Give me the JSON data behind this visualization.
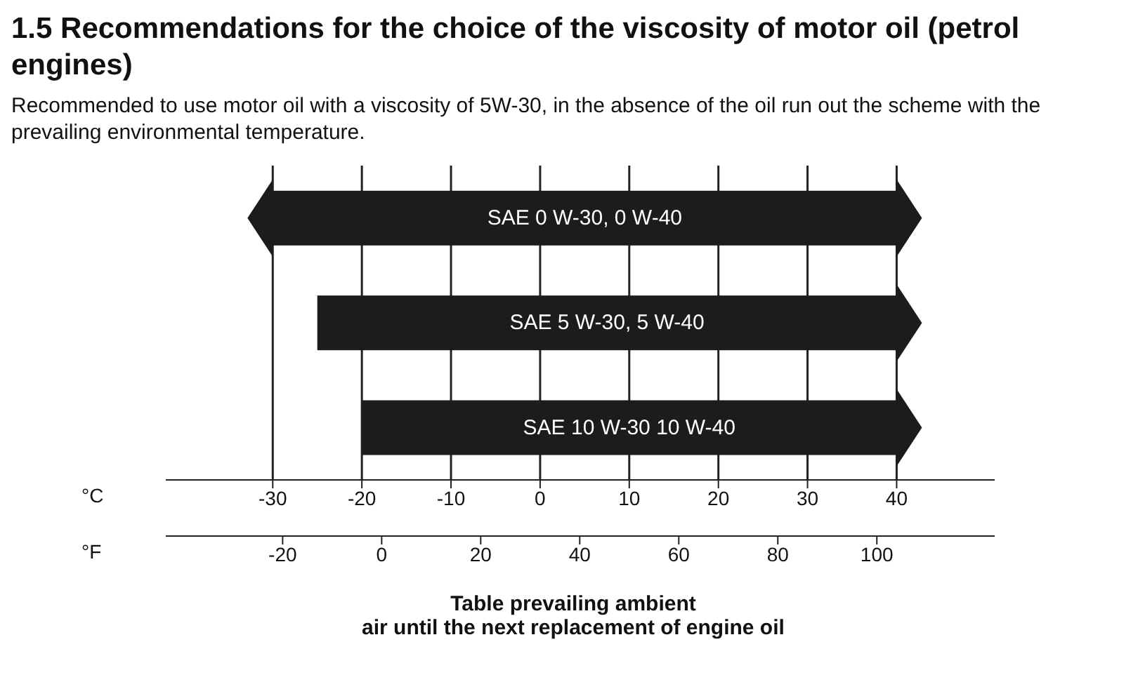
{
  "chart_data": {
    "type": "bar",
    "orientation": "horizontal",
    "title": "1.5  Recommendations for the choice of the viscosity of motor oil (petrol engines)",
    "subtitle": "Recommended to use motor oil with a viscosity of 5W-30, in the absence of the oil run out the scheme with the prevailing environmental temperature.",
    "categories": [
      "SAE 0 W-30, 0 W-40",
      "SAE 5 W-30, 5 W-40",
      "SAE 10 W-30  10 W-40"
    ],
    "base": [
      -30,
      -25,
      -20
    ],
    "values": [
      70,
      65,
      60
    ],
    "color": "#1c1c1c",
    "xlabel": "°C",
    "xlim": [
      -42,
      51
    ],
    "xticks": [
      -30,
      -20,
      -10,
      0,
      10,
      20,
      30,
      40
    ],
    "x2label": "°F",
    "x2lim": [
      -43.6,
      123.8
    ],
    "x2ticks": [
      -20,
      0,
      20,
      40,
      60,
      80,
      100
    ],
    "grid": "x",
    "legend": false,
    "annotations": [
      "Table prevailing ambient\nair until the next replacement of engine oil"
    ]
  }
}
